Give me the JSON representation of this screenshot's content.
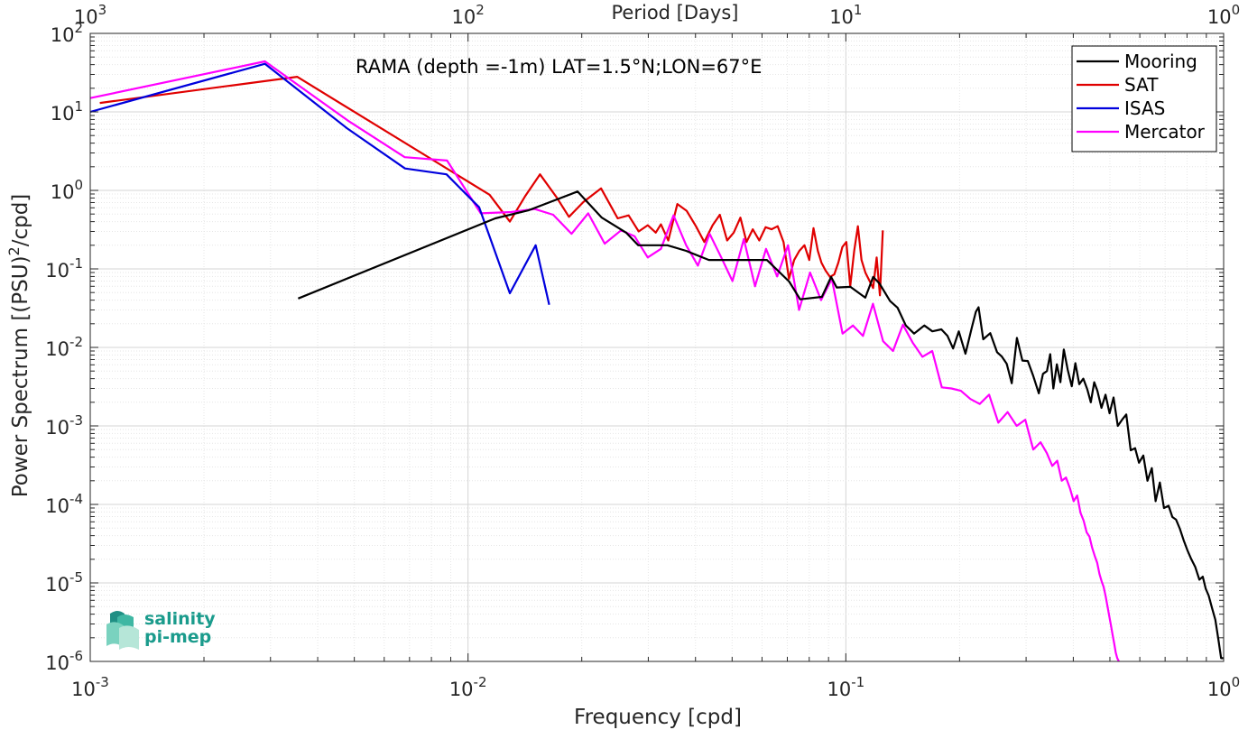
{
  "chart_data": {
    "type": "line",
    "title": "RAMA (depth =-1m) LAT=1.5°N;LON=67°E",
    "xlabel": "Frequency [cpd]",
    "ylabel_prefix": "Power Spectrum [(PSU)",
    "ylabel_sup": "2",
    "ylabel_suffix": "/cpd]",
    "top_xlabel": "Period [Days]",
    "xscale": "log",
    "yscale": "log",
    "xlim": [
      0.001,
      1
    ],
    "ylim": [
      1e-06,
      100
    ],
    "grid": true,
    "legend_position": "top-right",
    "x_ticks": [
      {
        "value": 0.001,
        "base": "10",
        "exp": "-3"
      },
      {
        "value": 0.01,
        "base": "10",
        "exp": "-2"
      },
      {
        "value": 0.1,
        "base": "10",
        "exp": "-1"
      },
      {
        "value": 1,
        "base": "10",
        "exp": "0"
      }
    ],
    "y_ticks": [
      {
        "value": 100,
        "base": "10",
        "exp": "2"
      },
      {
        "value": 10,
        "base": "10",
        "exp": "1"
      },
      {
        "value": 1,
        "base": "10",
        "exp": "0"
      },
      {
        "value": 0.1,
        "base": "10",
        "exp": "-1"
      },
      {
        "value": 0.01,
        "base": "10",
        "exp": "-2"
      },
      {
        "value": 0.001,
        "base": "10",
        "exp": "-3"
      },
      {
        "value": 0.0001,
        "base": "10",
        "exp": "-4"
      },
      {
        "value": 1e-05,
        "base": "10",
        "exp": "-5"
      },
      {
        "value": 1e-06,
        "base": "10",
        "exp": "-6"
      }
    ],
    "top_ticks": [
      {
        "freq": 0.001,
        "base": "10",
        "exp": "3"
      },
      {
        "freq": 0.01,
        "base": "10",
        "exp": "2"
      },
      {
        "freq": 0.1,
        "base": "10",
        "exp": "1"
      },
      {
        "freq": 1,
        "base": "10",
        "exp": "0"
      }
    ],
    "series": [
      {
        "name": "Mooring",
        "color": "#000000",
        "x": [
          0.00355,
          0.0118,
          0.0145,
          0.0195,
          0.0226,
          0.0262,
          0.0282,
          0.0304,
          0.0337,
          0.0378,
          0.0434,
          0.0539,
          0.0618,
          0.0708,
          0.0757,
          0.0864,
          0.0914,
          0.0946,
          0.1028,
          0.1126,
          0.1181,
          0.1228,
          0.1309,
          0.1371,
          0.1441,
          0.1516,
          0.1613,
          0.1694,
          0.179,
          0.1858,
          0.1923,
          0.199,
          0.2073,
          0.2156,
          0.2209,
          0.2245,
          0.2311,
          0.2412,
          0.2513,
          0.2585,
          0.2665,
          0.2749,
          0.2836,
          0.2933,
          0.3032,
          0.3135,
          0.3242,
          0.3326,
          0.3406,
          0.3474,
          0.3543,
          0.3619,
          0.3697,
          0.3775,
          0.3866,
          0.3963,
          0.4051,
          0.4147,
          0.4252,
          0.4358,
          0.4451,
          0.4545,
          0.4632,
          0.4749,
          0.4868,
          0.4989,
          0.5113,
          0.5247,
          0.5386,
          0.5524,
          0.5676,
          0.583,
          0.5971,
          0.6128,
          0.6288,
          0.6456,
          0.6605,
          0.6779,
          0.6954,
          0.7149,
          0.7316,
          0.7485,
          0.7659,
          0.7837,
          0.8021,
          0.8211,
          0.8409,
          0.8626,
          0.8809,
          0.8967,
          0.9126,
          0.9316,
          0.9505,
          0.9703,
          0.9847,
          1.0
        ],
        "y": [
          0.042,
          0.44,
          0.56,
          0.97,
          0.45,
          0.29,
          0.2,
          0.2,
          0.2,
          0.17,
          0.13,
          0.13,
          0.13,
          0.069,
          0.041,
          0.044,
          0.079,
          0.058,
          0.059,
          0.043,
          0.079,
          0.065,
          0.039,
          0.032,
          0.019,
          0.015,
          0.019,
          0.016,
          0.017,
          0.014,
          0.0097,
          0.016,
          0.0083,
          0.018,
          0.0284,
          0.0325,
          0.0127,
          0.0152,
          0.0087,
          0.0077,
          0.0062,
          0.0035,
          0.0132,
          0.0068,
          0.0067,
          0.0043,
          0.0026,
          0.0046,
          0.005,
          0.0082,
          0.003,
          0.0061,
          0.0036,
          0.0094,
          0.0052,
          0.0032,
          0.0063,
          0.0034,
          0.004,
          0.0029,
          0.002,
          0.0036,
          0.0028,
          0.0017,
          0.0025,
          0.00145,
          0.0023,
          0.001,
          0.0012,
          0.0014,
          0.00049,
          0.00052,
          0.00034,
          0.00042,
          0.0002,
          0.00029,
          0.00011,
          0.00019,
          9e-05,
          9.6e-05,
          6.9e-05,
          6.4e-05,
          4.9e-05,
          3.5e-05,
          2.6e-05,
          2e-05,
          1.6e-05,
          1.1e-05,
          1.2e-05,
          8.4e-06,
          6.9e-06,
          4.8e-06,
          3.4e-06,
          1.8e-06,
          1.1e-06,
          1.1e-06
        ]
      },
      {
        "name": "SAT",
        "color": "#e00000",
        "x": [
          0.00106,
          0.00353,
          0.0114,
          0.0129,
          0.0142,
          0.0155,
          0.0172,
          0.0185,
          0.0202,
          0.0225,
          0.0249,
          0.0266,
          0.0283,
          0.0299,
          0.0314,
          0.0324,
          0.0339,
          0.0358,
          0.0379,
          0.0401,
          0.0422,
          0.0444,
          0.0464,
          0.0485,
          0.0505,
          0.0526,
          0.0546,
          0.0567,
          0.059,
          0.0613,
          0.0636,
          0.066,
          0.0684,
          0.0707,
          0.073,
          0.0753,
          0.0777,
          0.08,
          0.0821,
          0.0843,
          0.0862,
          0.0884,
          0.0908,
          0.0932,
          0.0955,
          0.0979,
          0.1003,
          0.1027,
          0.1052,
          0.1076,
          0.11,
          0.1127,
          0.1154,
          0.1181,
          0.1207,
          0.1231,
          0.1253
        ],
        "y": [
          13.0,
          28.0,
          0.88,
          0.4,
          0.86,
          1.6,
          0.8,
          0.46,
          0.71,
          1.06,
          0.44,
          0.48,
          0.3,
          0.36,
          0.29,
          0.37,
          0.23,
          0.67,
          0.55,
          0.35,
          0.22,
          0.36,
          0.49,
          0.23,
          0.29,
          0.45,
          0.22,
          0.32,
          0.23,
          0.34,
          0.32,
          0.35,
          0.22,
          0.075,
          0.13,
          0.17,
          0.2,
          0.13,
          0.33,
          0.17,
          0.12,
          0.095,
          0.079,
          0.085,
          0.12,
          0.19,
          0.22,
          0.06,
          0.17,
          0.35,
          0.13,
          0.089,
          0.071,
          0.057,
          0.14,
          0.046,
          0.31
        ]
      },
      {
        "name": "ISAS",
        "color": "#0000dd",
        "x": [
          0.001,
          0.0029,
          0.00478,
          0.00681,
          0.00877,
          0.0107,
          0.0129,
          0.0151,
          0.0164
        ],
        "y": [
          10.0,
          41.0,
          6.2,
          1.9,
          1.6,
          0.61,
          0.049,
          0.2,
          0.035
        ]
      },
      {
        "name": "Mercator",
        "color": "#ff00ff",
        "x": [
          0.001,
          0.0029,
          0.0048,
          0.0068,
          0.0088,
          0.0108,
          0.013,
          0.015,
          0.0168,
          0.0188,
          0.0208,
          0.023,
          0.0254,
          0.0276,
          0.0299,
          0.0324,
          0.035,
          0.0378,
          0.0406,
          0.0436,
          0.0468,
          0.0501,
          0.0537,
          0.0575,
          0.0615,
          0.0658,
          0.0703,
          0.0752,
          0.0804,
          0.086,
          0.0918,
          0.098,
          0.1044,
          0.111,
          0.118,
          0.1255,
          0.1333,
          0.1416,
          0.1503,
          0.1595,
          0.1693,
          0.1795,
          0.1903,
          0.2016,
          0.2137,
          0.2262,
          0.2395,
          0.2532,
          0.2681,
          0.2833,
          0.2986,
          0.3134,
          0.3277,
          0.3405,
          0.3519,
          0.3627,
          0.3729,
          0.3826,
          0.3919,
          0.4009,
          0.4096,
          0.418,
          0.4261,
          0.434,
          0.4415,
          0.4488,
          0.4559,
          0.4627,
          0.4692,
          0.4753,
          0.4812,
          0.4869,
          0.4925,
          0.4979,
          0.5031,
          0.5081,
          0.5131,
          0.5181,
          0.523,
          0.528
        ],
        "y": [
          15.0,
          44.0,
          7.8,
          2.65,
          2.4,
          0.51,
          0.53,
          0.58,
          0.49,
          0.28,
          0.51,
          0.21,
          0.31,
          0.26,
          0.14,
          0.18,
          0.48,
          0.2,
          0.11,
          0.28,
          0.14,
          0.07,
          0.24,
          0.06,
          0.18,
          0.08,
          0.2,
          0.03,
          0.09,
          0.04,
          0.075,
          0.015,
          0.019,
          0.014,
          0.036,
          0.012,
          0.009,
          0.0195,
          0.0115,
          0.0076,
          0.009,
          0.0031,
          0.003,
          0.0028,
          0.0022,
          0.0019,
          0.0025,
          0.0011,
          0.0015,
          0.001,
          0.0012,
          0.0005,
          0.00062,
          0.00045,
          0.00031,
          0.00036,
          0.0002,
          0.00022,
          0.00016,
          0.00011,
          0.00013,
          7.8e-05,
          6.2e-05,
          4.4e-05,
          3.9e-05,
          2.8e-05,
          2.2e-05,
          1.8e-05,
          1.3e-05,
          1.05e-05,
          8.9e-06,
          6.9e-06,
          5.1e-06,
          3.8e-06,
          2.9e-06,
          2.2e-06,
          1.7e-06,
          1.3e-06,
          1.1e-06,
          1e-06
        ]
      }
    ]
  },
  "logo": {
    "line1": "salinity",
    "line2": "pi-mep"
  }
}
